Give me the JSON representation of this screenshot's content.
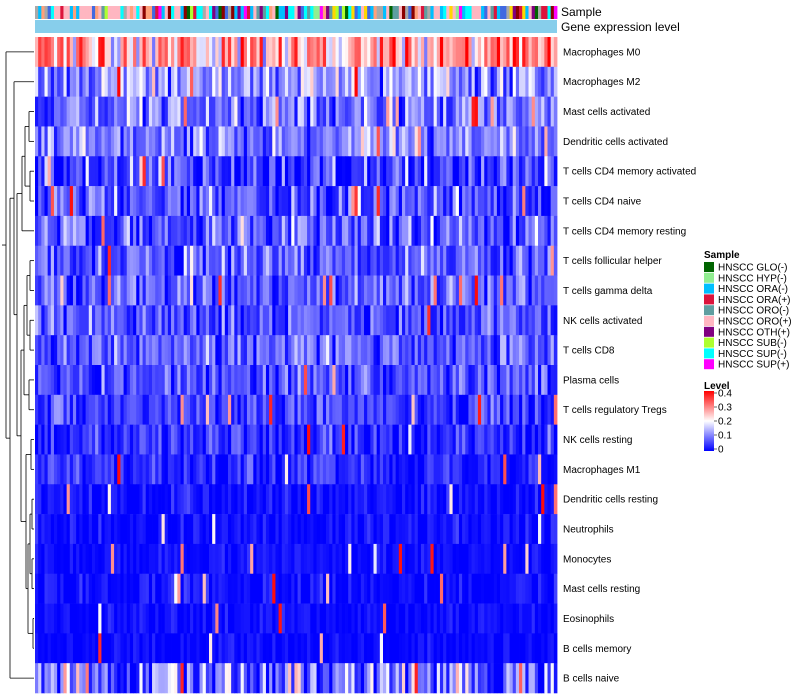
{
  "chart_data": {
    "type": "heatmap",
    "title": "",
    "column_annotations": [
      "Sample",
      "Gene expression level"
    ],
    "rows": [
      {
        "label": "Macrophages M0",
        "mean": 0.27,
        "spread": 0.12
      },
      {
        "label": "Macrophages M2",
        "mean": 0.12,
        "spread": 0.08
      },
      {
        "label": "Mast cells activated",
        "mean": 0.09,
        "spread": 0.08
      },
      {
        "label": "Dendritic cells activated",
        "mean": 0.1,
        "spread": 0.07
      },
      {
        "label": "T cells CD4 memory activated",
        "mean": 0.06,
        "spread": 0.08
      },
      {
        "label": "T cells CD4 naive",
        "mean": 0.06,
        "spread": 0.08
      },
      {
        "label": "T cells CD4 memory resting",
        "mean": 0.07,
        "spread": 0.08
      },
      {
        "label": "T cells follicular helper",
        "mean": 0.07,
        "spread": 0.06
      },
      {
        "label": "T cells gamma delta",
        "mean": 0.07,
        "spread": 0.06
      },
      {
        "label": "NK cells activated",
        "mean": 0.06,
        "spread": 0.06
      },
      {
        "label": "T cells CD8",
        "mean": 0.07,
        "spread": 0.06
      },
      {
        "label": "Plasma cells",
        "mean": 0.06,
        "spread": 0.06
      },
      {
        "label": "T cells regulatory  Tregs",
        "mean": 0.05,
        "spread": 0.05
      },
      {
        "label": "NK cells resting",
        "mean": 0.03,
        "spread": 0.05
      },
      {
        "label": "Macrophages M1",
        "mean": 0.03,
        "spread": 0.04
      },
      {
        "label": "Dendritic cells resting",
        "mean": 0.01,
        "spread": 0.03
      },
      {
        "label": "Neutrophils",
        "mean": 0.01,
        "spread": 0.03
      },
      {
        "label": "Monocytes",
        "mean": 0.01,
        "spread": 0.02
      },
      {
        "label": "Mast cells resting",
        "mean": 0.01,
        "spread": 0.03
      },
      {
        "label": "Eosinophils",
        "mean": 0.01,
        "spread": 0.02
      },
      {
        "label": "B cells memory",
        "mean": 0.005,
        "spread": 0.02
      },
      {
        "label": "B cells naive",
        "mean": 0.1,
        "spread": 0.12
      }
    ],
    "n_samples": 165,
    "legend_sample": {
      "title": "Sample",
      "items": [
        {
          "label": "HNSCC GLO(-)",
          "color": "#006400"
        },
        {
          "label": "HNSCC HYP(-)",
          "color": "#90EE90"
        },
        {
          "label": "HNSCC ORA(-)",
          "color": "#00BFFF"
        },
        {
          "label": "HNSCC ORA(+)",
          "color": "#DC143C"
        },
        {
          "label": "HNSCC ORO(-)",
          "color": "#5F9EA0"
        },
        {
          "label": "HNSCC ORO(+)",
          "color": "#FFB6C1"
        },
        {
          "label": "HNSCC OTH(+)",
          "color": "#800080"
        },
        {
          "label": "HNSCC SUB(-)",
          "color": "#ADFF2F"
        },
        {
          "label": "HNSCC SUP(-)",
          "color": "#00FFFF"
        },
        {
          "label": "HNSCC SUP(+)",
          "color": "#FF00FF"
        }
      ]
    },
    "legend_level": {
      "title": "Level",
      "ticks": [
        "0.4",
        "0.3",
        "0.2",
        "0.1",
        "0"
      ],
      "tick_values": [
        0.4,
        0.3,
        0.2,
        0.1,
        0
      ],
      "range": [
        0,
        0.4
      ],
      "colors": [
        "#0000FF",
        "#FFFFFF",
        "#FF0000"
      ]
    },
    "gene_expression_color": "#87CEEB",
    "sample_bar_extra_colors": [
      "#A9A9A9",
      "#8B0000",
      "#FFA07A",
      "#4169E1",
      "#FFD700"
    ]
  }
}
